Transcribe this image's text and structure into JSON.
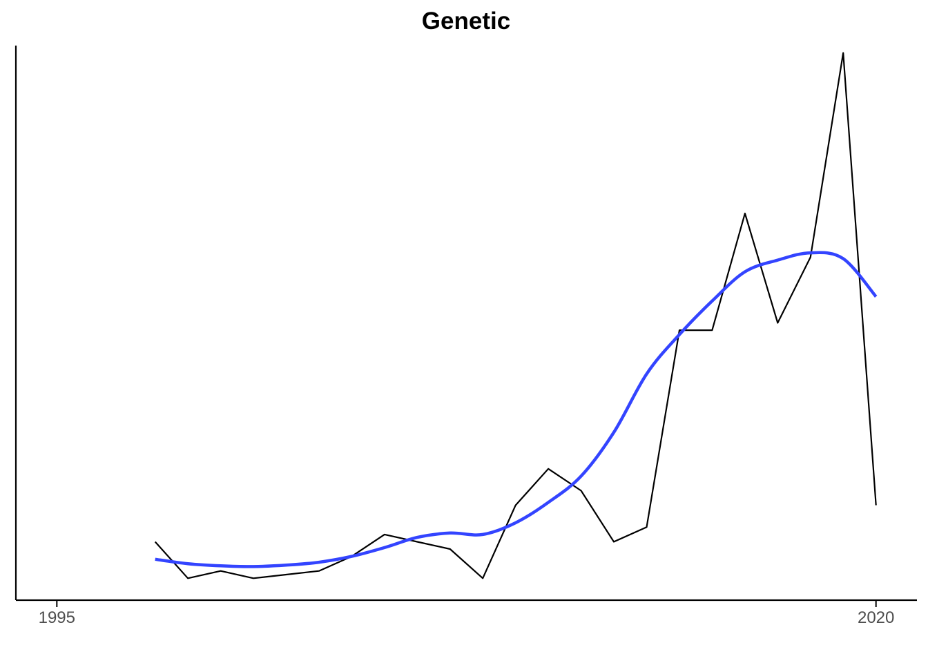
{
  "chart_data": {
    "type": "line",
    "title": "Genetic",
    "xlabel": "",
    "ylabel": "",
    "xlim": [
      1993.75,
      2021.25
    ],
    "ylim": [
      0,
      38
    ],
    "x_ticks": [
      1995,
      2020
    ],
    "x_tick_labels": [
      "1995",
      "2020"
    ],
    "y_axis_labels_shown": false,
    "grid": false,
    "legend": "none",
    "series": [
      {
        "kind": "observed",
        "color": "#000000",
        "x": [
          1998,
          1999,
          2000,
          2001,
          2002,
          2003,
          2004,
          2005,
          2006,
          2007,
          2008,
          2009,
          2010,
          2011,
          2012,
          2013,
          2014,
          2015,
          2016,
          2017,
          2018,
          2019,
          2020
        ],
        "y": [
          4,
          1.5,
          2,
          1.5,
          1.75,
          2,
          3,
          4.5,
          4,
          3.5,
          1.5,
          6.5,
          9,
          7.5,
          4,
          5,
          18.5,
          18.5,
          26.5,
          19,
          23.5,
          37.5,
          6.5
        ]
      },
      {
        "kind": "smoothed trend",
        "color": "#3344ff",
        "x": [
          1998,
          1999,
          2000,
          2001,
          2002,
          2003,
          2004,
          2005,
          2006,
          2007,
          2008,
          2009,
          2010,
          2011,
          2012,
          2013,
          2014,
          2015,
          2016,
          2017,
          2018,
          2019,
          2020
        ],
        "y": [
          2.8,
          2.5,
          2.35,
          2.3,
          2.4,
          2.6,
          3.0,
          3.6,
          4.3,
          4.6,
          4.5,
          5.3,
          6.7,
          8.5,
          11.5,
          15.5,
          18.2,
          20.5,
          22.5,
          23.3,
          23.8,
          23.4,
          20.8
        ]
      }
    ]
  }
}
